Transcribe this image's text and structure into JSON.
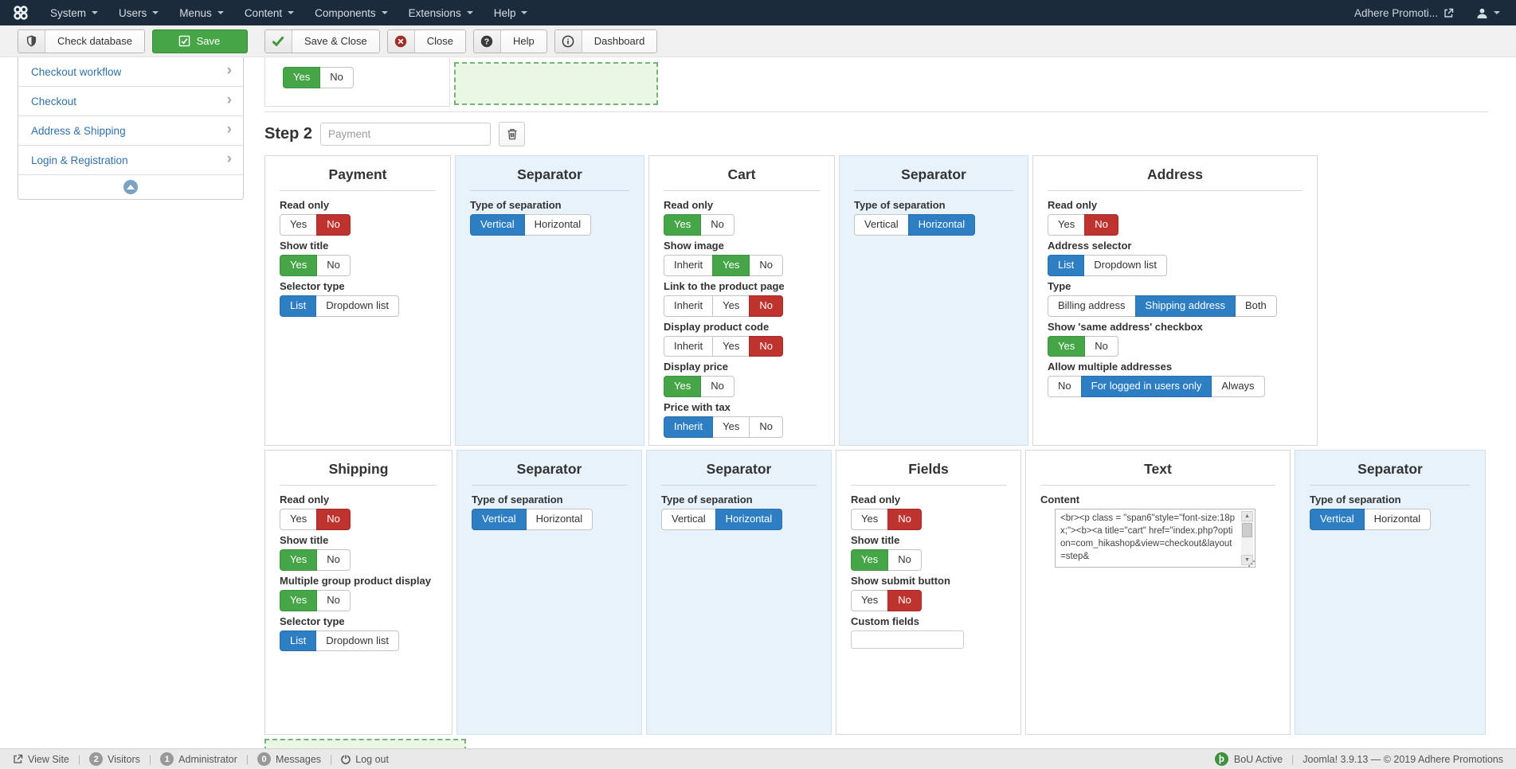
{
  "colors": {
    "accent_green": "#46a546",
    "accent_red": "#bf332f",
    "accent_blue": "#2d7ec3",
    "separator_bg": "#e7f2fb",
    "topbar_bg": "#1c2b3b"
  },
  "topbar": {
    "menus": [
      "System",
      "Users",
      "Menus",
      "Content",
      "Components",
      "Extensions",
      "Help"
    ],
    "site_name": "Adhere Promoti...",
    "icons": [
      "joomla-logo",
      "external-link-icon",
      "user-icon",
      "caret-down-icon"
    ]
  },
  "toolbar": {
    "buttons": [
      {
        "icon": "shield",
        "label": "Check database",
        "style": "default"
      },
      {
        "icon": "save",
        "label": "Save",
        "style": "success"
      },
      {
        "icon": "check",
        "label": "Save & Close",
        "style": "default"
      },
      {
        "icon": "close",
        "label": "Close",
        "style": "default"
      },
      {
        "icon": "help",
        "label": "Help",
        "style": "default"
      },
      {
        "icon": "dashboard",
        "label": "Dashboard",
        "style": "default"
      }
    ]
  },
  "sidebar": {
    "items": [
      {
        "label": "Checkout workflow"
      },
      {
        "label": "Checkout"
      },
      {
        "label": "Address & Shipping"
      },
      {
        "label": "Login & Registration"
      }
    ],
    "collapse_icon": "chevron-up-circle-icon"
  },
  "main": {
    "step1": {
      "toggle": [
        {
          "label": "Yes",
          "state": "green"
        },
        {
          "label": "No",
          "state": ""
        }
      ]
    },
    "step2": {
      "title": "Step 2",
      "placeholder": "Payment",
      "delete_icon": "trash-icon"
    },
    "rows": [
      [
        {
          "type": "panel",
          "title": "Payment",
          "fields": [
            {
              "label": "Read only",
              "toggle": [
                {
                  "label": "Yes",
                  "state": ""
                },
                {
                  "label": "No",
                  "state": "red"
                }
              ]
            },
            {
              "label": "Show title",
              "toggle": [
                {
                  "label": "Yes",
                  "state": "green"
                },
                {
                  "label": "No",
                  "state": ""
                }
              ]
            },
            {
              "label": "Selector type",
              "toggle": [
                {
                  "label": "List",
                  "state": "blue"
                },
                {
                  "label": "Dropdown list",
                  "state": ""
                }
              ]
            }
          ]
        },
        {
          "type": "separator",
          "title": "Separator",
          "fields": [
            {
              "label": "Type of separation",
              "toggle": [
                {
                  "label": "Vertical",
                  "state": "blue"
                },
                {
                  "label": "Horizontal",
                  "state": ""
                }
              ]
            }
          ]
        },
        {
          "type": "panel",
          "title": "Cart",
          "fields": [
            {
              "label": "Read only",
              "toggle": [
                {
                  "label": "Yes",
                  "state": "green"
                },
                {
                  "label": "No",
                  "state": ""
                }
              ]
            },
            {
              "label": "Show image",
              "toggle": [
                {
                  "label": "Inherit",
                  "state": ""
                },
                {
                  "label": "Yes",
                  "state": "green"
                },
                {
                  "label": "No",
                  "state": ""
                }
              ]
            },
            {
              "label": "Link to the product page",
              "toggle": [
                {
                  "label": "Inherit",
                  "state": ""
                },
                {
                  "label": "Yes",
                  "state": ""
                },
                {
                  "label": "No",
                  "state": "red"
                }
              ]
            },
            {
              "label": "Display product code",
              "toggle": [
                {
                  "label": "Inherit",
                  "state": ""
                },
                {
                  "label": "Yes",
                  "state": ""
                },
                {
                  "label": "No",
                  "state": "red"
                }
              ]
            },
            {
              "label": "Display price",
              "toggle": [
                {
                  "label": "Yes",
                  "state": "green"
                },
                {
                  "label": "No",
                  "state": ""
                }
              ]
            },
            {
              "label": "Price with tax",
              "toggle": [
                {
                  "label": "Inherit",
                  "state": "blue"
                },
                {
                  "label": "Yes",
                  "state": ""
                },
                {
                  "label": "No",
                  "state": ""
                }
              ]
            }
          ]
        },
        {
          "type": "separator",
          "title": "Separator",
          "fields": [
            {
              "label": "Type of separation",
              "toggle": [
                {
                  "label": "Vertical",
                  "state": ""
                },
                {
                  "label": "Horizontal",
                  "state": "blue"
                }
              ]
            }
          ]
        },
        {
          "type": "panel",
          "title": "Address",
          "fields": [
            {
              "label": "Read only",
              "toggle": [
                {
                  "label": "Yes",
                  "state": ""
                },
                {
                  "label": "No",
                  "state": "red"
                }
              ]
            },
            {
              "label": "Address selector",
              "toggle": [
                {
                  "label": "List",
                  "state": "blue"
                },
                {
                  "label": "Dropdown list",
                  "state": ""
                }
              ]
            },
            {
              "label": "Type",
              "toggle": [
                {
                  "label": "Billing address",
                  "state": ""
                },
                {
                  "label": "Shipping address",
                  "state": "blue"
                },
                {
                  "label": "Both",
                  "state": ""
                }
              ]
            },
            {
              "label": "Show 'same address' checkbox",
              "toggle": [
                {
                  "label": "Yes",
                  "state": "green"
                },
                {
                  "label": "No",
                  "state": ""
                }
              ]
            },
            {
              "label": "Allow multiple addresses",
              "toggle": [
                {
                  "label": "No",
                  "state": ""
                },
                {
                  "label": "For logged in users only",
                  "state": "blue"
                },
                {
                  "label": "Always",
                  "state": ""
                }
              ]
            }
          ]
        }
      ],
      [
        {
          "type": "panel",
          "title": "Shipping",
          "fields": [
            {
              "label": "Read only",
              "toggle": [
                {
                  "label": "Yes",
                  "state": ""
                },
                {
                  "label": "No",
                  "state": "red"
                }
              ]
            },
            {
              "label": "Show title",
              "toggle": [
                {
                  "label": "Yes",
                  "state": "green"
                },
                {
                  "label": "No",
                  "state": ""
                }
              ]
            },
            {
              "label": "Multiple group product display",
              "toggle": [
                {
                  "label": "Yes",
                  "state": "green"
                },
                {
                  "label": "No",
                  "state": ""
                }
              ]
            },
            {
              "label": "Selector type",
              "toggle": [
                {
                  "label": "List",
                  "state": "blue"
                },
                {
                  "label": "Dropdown list",
                  "state": ""
                }
              ]
            }
          ]
        },
        {
          "type": "separator",
          "title": "Separator",
          "fields": [
            {
              "label": "Type of separation",
              "toggle": [
                {
                  "label": "Vertical",
                  "state": "blue"
                },
                {
                  "label": "Horizontal",
                  "state": ""
                }
              ]
            }
          ]
        },
        {
          "type": "separator",
          "title": "Separator",
          "fields": [
            {
              "label": "Type of separation",
              "toggle": [
                {
                  "label": "Vertical",
                  "state": ""
                },
                {
                  "label": "Horizontal",
                  "state": "blue"
                }
              ]
            }
          ]
        },
        {
          "type": "panel",
          "title": "Fields",
          "fields": [
            {
              "label": "Read only",
              "toggle": [
                {
                  "label": "Yes",
                  "state": ""
                },
                {
                  "label": "No",
                  "state": "red"
                }
              ]
            },
            {
              "label": "Show title",
              "toggle": [
                {
                  "label": "Yes",
                  "state": "green"
                },
                {
                  "label": "No",
                  "state": ""
                }
              ]
            },
            {
              "label": "Show submit button",
              "toggle": [
                {
                  "label": "Yes",
                  "state": ""
                },
                {
                  "label": "No",
                  "state": "red"
                }
              ]
            },
            {
              "label": "Custom fields",
              "input": ""
            }
          ]
        },
        {
          "type": "panel",
          "title": "Text",
          "fields": [
            {
              "label": "Content",
              "textarea": "<br><p class = \"span6\"style=\"font-size:18px;\"><b><a title=\"cart\" href=\"index.php?option=com_hikashop&view=checkout&layout=step&"
            }
          ]
        },
        {
          "type": "separator",
          "title": "Separator",
          "fields": [
            {
              "label": "Type of separation",
              "toggle": [
                {
                  "label": "Vertical",
                  "state": "blue"
                },
                {
                  "label": "Horizontal",
                  "state": ""
                }
              ]
            }
          ]
        }
      ]
    ]
  },
  "statusbar": {
    "left": [
      {
        "icon": "view-site",
        "label": "View Site"
      },
      {
        "badge": "2",
        "label": "Visitors"
      },
      {
        "badge": "1",
        "label": "Administrator"
      },
      {
        "badge": "0",
        "label": "Messages"
      },
      {
        "icon": "logout",
        "label": "Log out"
      }
    ],
    "right": {
      "plugin_icon": "plugin-status-icon",
      "plugin_label": "BoU Active",
      "version": "Joomla! 3.9.13 — © 2019 Adhere Promotions"
    }
  }
}
